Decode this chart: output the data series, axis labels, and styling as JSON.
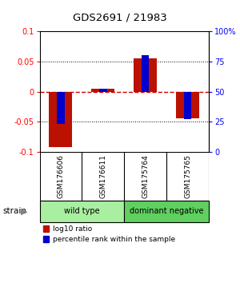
{
  "title": "GDS2691 / 21983",
  "samples": [
    "GSM176606",
    "GSM176611",
    "GSM175764",
    "GSM175765"
  ],
  "log10_ratio": [
    -0.092,
    0.005,
    0.055,
    -0.044
  ],
  "percentile_rank": [
    23,
    52,
    80,
    27
  ],
  "ylim_left": [
    -0.1,
    0.1
  ],
  "ylim_right": [
    0,
    100
  ],
  "yticks_left": [
    -0.1,
    -0.05,
    0,
    0.05,
    0.1
  ],
  "yticks_right": [
    0,
    25,
    50,
    75,
    100
  ],
  "ytick_labels_left": [
    "-0.1",
    "-0.05",
    "0",
    "0.05",
    "0.1"
  ],
  "ytick_labels_right": [
    "0",
    "25",
    "50",
    "75",
    "100%"
  ],
  "groups": [
    {
      "label": "wild type",
      "color": "#a8f0a0",
      "samples": [
        0,
        1
      ]
    },
    {
      "label": "dominant negative",
      "color": "#60d060",
      "samples": [
        2,
        3
      ]
    }
  ],
  "bar_color_red": "#bb1100",
  "bar_color_blue": "#0000cc",
  "bar_width": 0.55,
  "blue_bar_width": 0.18,
  "hline_zero_color": "#cc0000",
  "dotted_line_color": "#000000",
  "background_color": "#ffffff",
  "label_area_color": "#c0c0c0",
  "strain_label": "strain",
  "legend_red": "log10 ratio",
  "legend_blue": "percentile rank within the sample",
  "figsize": [
    3.0,
    3.54
  ],
  "dpi": 100
}
